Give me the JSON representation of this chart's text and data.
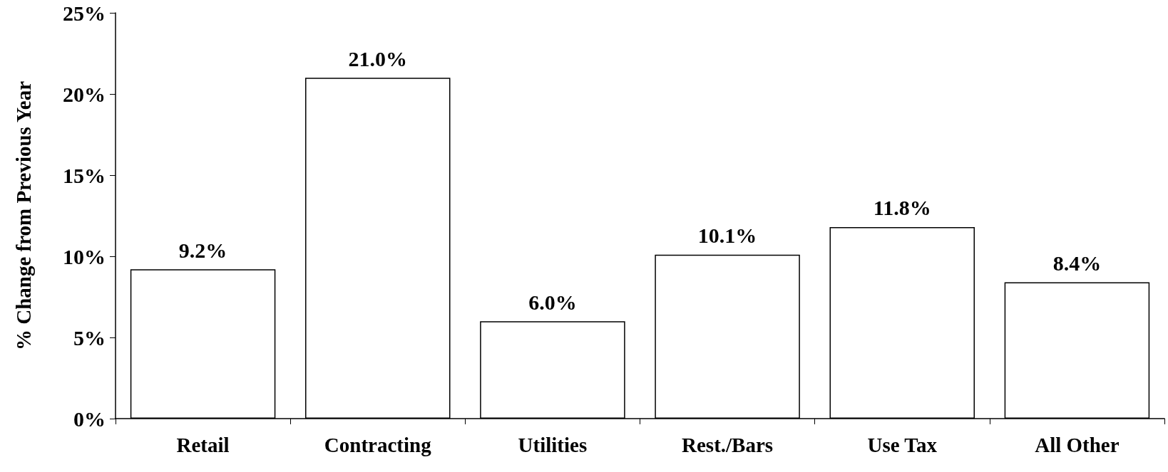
{
  "chart_data": {
    "type": "bar",
    "ylabel": "% Change from Previous Year",
    "categories": [
      "Retail",
      "Contracting",
      "Utilities",
      "Rest./Bars",
      "Use Tax",
      "All Other"
    ],
    "values": [
      9.2,
      21.0,
      6.0,
      10.1,
      11.8,
      8.4
    ],
    "value_labels": [
      "9.2%",
      "21.0%",
      "6.0%",
      "10.1%",
      "11.8%",
      "8.4%"
    ],
    "color": "#ffffff",
    "ylim": [
      0,
      25
    ],
    "yticks": [
      {
        "value": 0,
        "label": "0%"
      },
      {
        "value": 5,
        "label": "5%"
      },
      {
        "value": 10,
        "label": "10%"
      },
      {
        "value": 15,
        "label": "15%"
      },
      {
        "value": 20,
        "label": "20%"
      },
      {
        "value": 25,
        "label": "25%"
      }
    ],
    "grid": false
  }
}
